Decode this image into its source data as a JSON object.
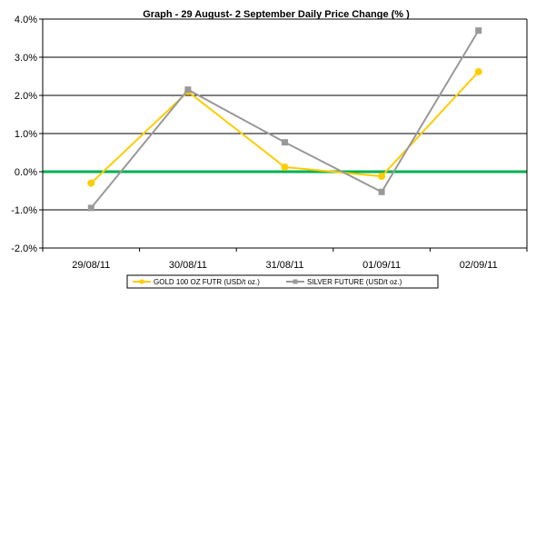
{
  "chart_data": {
    "type": "line",
    "title": "Graph -    29 August- 2 September Daily Price Change (% )",
    "categories": [
      "29/08/11",
      "30/08/11",
      "31/08/11",
      "01/09/11",
      "02/09/11"
    ],
    "y_ticks": [
      "4.0%",
      "3.0%",
      "2.0%",
      "1.0%",
      "0.0%",
      "-1.0%",
      "-2.0%"
    ],
    "ylim": [
      -2,
      4
    ],
    "grid": true,
    "legend_position": "bottom",
    "zero_line_color": "#00b050",
    "series": [
      {
        "name": "GOLD 100 OZ FUTR (USD/t oz.)",
        "color": "#ffcc00",
        "marker": "circle",
        "values": [
          -0.3,
          2.1,
          0.12,
          -0.12,
          2.62
        ]
      },
      {
        "name": "SILVER FUTURE (USD/t oz.)",
        "color": "#999999",
        "marker": "square",
        "values": [
          -0.95,
          2.15,
          0.77,
          -0.53,
          3.7
        ]
      }
    ]
  }
}
